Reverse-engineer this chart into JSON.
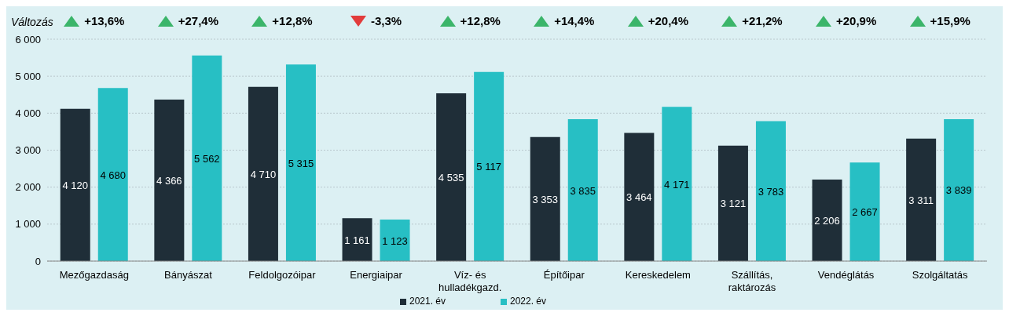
{
  "chart_data": {
    "type": "bar",
    "categories": [
      "Mezőgazdaság",
      "Bányászat",
      "Feldolgozóipar",
      "Energiaipar",
      "Víz- és hulladékgazd.",
      "Építőipar",
      "Kereskedelem",
      "Szállítás, raktározás",
      "Vendéglátás",
      "Szolgáltatás"
    ],
    "series": [
      {
        "name": "2021. év",
        "color": "#1f2e38",
        "values": [
          4120,
          4366,
          4710,
          1161,
          4535,
          3353,
          3464,
          3121,
          2206,
          3311
        ],
        "value_labels": [
          "4 120",
          "4 366",
          "4 710",
          "1 161",
          "4 535",
          "3 353",
          "3 464",
          "3 121",
          "2 206",
          "3 311"
        ]
      },
      {
        "name": "2022. év",
        "color": "#27bfc4",
        "values": [
          4680,
          5562,
          5315,
          1123,
          5117,
          3835,
          4171,
          3783,
          2667,
          3839
        ],
        "value_labels": [
          "4 680",
          "5 562",
          "5 315",
          "1 123",
          "5 117",
          "3 835",
          "4 171",
          "3 783",
          "2 667",
          "3 839"
        ]
      }
    ],
    "ylim": [
      0,
      6000
    ],
    "yticks": [
      {
        "value": 0,
        "label": "0"
      },
      {
        "value": 1000,
        "label": "1 000"
      },
      {
        "value": 2000,
        "label": "2 000"
      },
      {
        "value": 3000,
        "label": "3 000"
      },
      {
        "value": 4000,
        "label": "4 000"
      },
      {
        "value": 5000,
        "label": "5 000"
      },
      {
        "value": 6000,
        "label": "6 000"
      }
    ],
    "grid": "y",
    "legend": "bottom",
    "annotations": [
      "Változás",
      "+13,6%",
      "+27,4%",
      "+12,8%",
      "-3,3%",
      "+12,8%",
      "+14,4%",
      "+20,4%",
      "+21,2%",
      "+20,9%",
      "+15,9%"
    ]
  }
}
